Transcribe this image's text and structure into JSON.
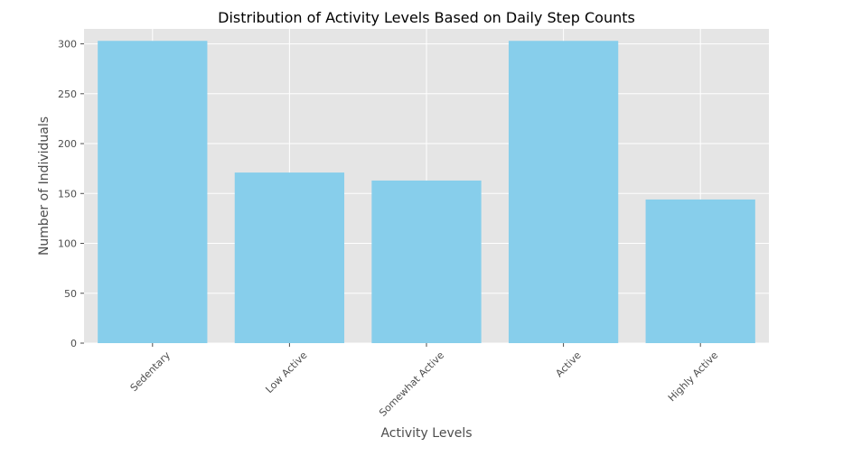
{
  "chart_data": {
    "type": "bar",
    "title": "Distribution of Activity Levels Based on Daily Step Counts",
    "xlabel": "Activity Levels",
    "ylabel": "Number of Individuals",
    "categories": [
      "Sedentary",
      "Low Active",
      "Somewhat Active",
      "Active",
      "Highly Active"
    ],
    "values": [
      303,
      171,
      163,
      303,
      144
    ],
    "ylim": [
      0,
      315
    ],
    "yticks": [
      0,
      50,
      100,
      150,
      200,
      250,
      300
    ],
    "grid": true,
    "colors": {
      "bar": "#87ceeb",
      "plot_background": "#e5e5e5",
      "grid": "#ffffff"
    }
  }
}
